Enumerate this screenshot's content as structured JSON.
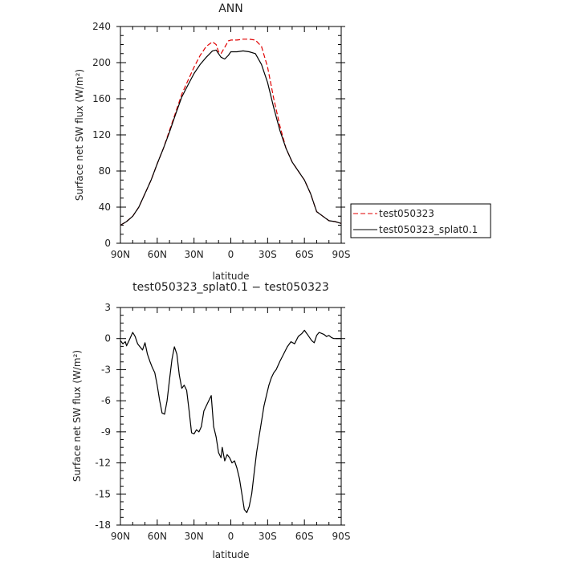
{
  "chart_data": [
    {
      "type": "line",
      "title": "ANN",
      "xlabel": "latitude",
      "ylabel": "Surface net SW flux (W/m²)",
      "xlim": [
        -90,
        90
      ],
      "ylim": [
        0,
        240
      ],
      "x_ticks": [
        -90,
        -60,
        -30,
        0,
        30,
        60,
        90
      ],
      "x_tick_labels": [
        "90N",
        "60N",
        "30N",
        "0",
        "30S",
        "60S",
        "90S"
      ],
      "y_ticks": [
        0,
        40,
        80,
        120,
        160,
        200,
        240
      ],
      "y_tick_labels": [
        "0",
        "40",
        "80",
        "120",
        "160",
        "200",
        "240"
      ],
      "legend": {
        "placement": "right"
      },
      "series": [
        {
          "name": "test050323",
          "color": "#e00000",
          "dash": true,
          "x": [
            -90,
            -85,
            -80,
            -75,
            -70,
            -65,
            -60,
            -55,
            -50,
            -45,
            -40,
            -35,
            -30,
            -25,
            -20,
            -15,
            -12,
            -10,
            -8,
            -5,
            -2,
            0,
            5,
            10,
            15,
            20,
            25,
            30,
            35,
            40,
            45,
            50,
            55,
            60,
            65,
            70,
            75,
            80,
            85,
            90
          ],
          "y": [
            20,
            24,
            30,
            40,
            55,
            70,
            88,
            105,
            125,
            145,
            165,
            180,
            195,
            208,
            218,
            223,
            220,
            212,
            210,
            217,
            224,
            225,
            225,
            226,
            226,
            225,
            218,
            195,
            160,
            130,
            105,
            90,
            80,
            70,
            55,
            35,
            30,
            25,
            24,
            22
          ]
        },
        {
          "name": "test050323_splat0.1",
          "color": "#000000",
          "dash": false,
          "x": [
            -90,
            -85,
            -80,
            -75,
            -70,
            -65,
            -60,
            -55,
            -50,
            -45,
            -40,
            -35,
            -30,
            -25,
            -20,
            -15,
            -12,
            -10,
            -8,
            -5,
            -2,
            0,
            5,
            10,
            15,
            20,
            25,
            30,
            35,
            40,
            45,
            50,
            55,
            60,
            65,
            70,
            75,
            80,
            85,
            90
          ],
          "y": [
            20,
            24,
            30,
            40,
            55,
            70,
            88,
            105,
            123,
            143,
            162,
            175,
            188,
            198,
            206,
            213,
            214,
            210,
            206,
            204,
            208,
            212,
            212,
            213,
            212,
            210,
            198,
            178,
            150,
            125,
            105,
            90,
            80,
            70,
            55,
            35,
            30,
            25,
            24,
            22
          ]
        }
      ]
    },
    {
      "type": "line",
      "title": "test050323_splat0.1 − test050323",
      "xlabel": "latitude",
      "ylabel": "Surface net SW flux (W/m²)",
      "xlim": [
        -90,
        90
      ],
      "ylim": [
        -18,
        3
      ],
      "x_ticks": [
        -90,
        -60,
        -30,
        0,
        30,
        60,
        90
      ],
      "x_tick_labels": [
        "90N",
        "60N",
        "30N",
        "0",
        "30S",
        "60S",
        "90S"
      ],
      "y_ticks": [
        -18,
        -15,
        -12,
        -9,
        -6,
        -3,
        0,
        3
      ],
      "y_tick_labels": [
        "-18",
        "-15",
        "-12",
        "-9",
        "-6",
        "-3",
        "0",
        "3"
      ],
      "series": [
        {
          "color": "#000000",
          "x": [
            -90,
            -88,
            -86,
            -85,
            -83,
            -80,
            -78,
            -76,
            -74,
            -72,
            -70,
            -68,
            -66,
            -64,
            -62,
            -60,
            -58,
            -56,
            -54,
            -52,
            -50,
            -48,
            -46,
            -44,
            -42,
            -40,
            -38,
            -36,
            -34,
            -32,
            -30,
            -28,
            -26,
            -24,
            -22,
            -20,
            -18,
            -16,
            -14,
            -12,
            -10,
            -8,
            -7,
            -5,
            -3,
            -1,
            1,
            3,
            5,
            7,
            9,
            11,
            13,
            15,
            17,
            19,
            21,
            23,
            25,
            27,
            29,
            31,
            33,
            35,
            37,
            40,
            43,
            46,
            49,
            52,
            55,
            58,
            60,
            63,
            66,
            68,
            70,
            72,
            74,
            76,
            78,
            80,
            82,
            84,
            86,
            88,
            90
          ],
          "y": [
            -0.2,
            -0.5,
            -0.3,
            -0.7,
            -0.2,
            0.6,
            0.2,
            -0.5,
            -0.8,
            -1.1,
            -0.4,
            -1.5,
            -2.2,
            -2.8,
            -3.3,
            -4.5,
            -6.0,
            -7.2,
            -7.3,
            -6.0,
            -4.0,
            -2.0,
            -0.8,
            -1.5,
            -3.5,
            -4.8,
            -4.5,
            -5.0,
            -7.0,
            -9.1,
            -9.2,
            -8.8,
            -9.0,
            -8.5,
            -7.0,
            -6.5,
            -6.0,
            -5.5,
            -8.5,
            -9.5,
            -11.0,
            -11.5,
            -10.5,
            -11.8,
            -11.2,
            -11.5,
            -12.0,
            -11.8,
            -12.5,
            -13.5,
            -15.0,
            -16.5,
            -16.8,
            -16.2,
            -15.0,
            -13.0,
            -11.0,
            -9.5,
            -8.0,
            -6.5,
            -5.5,
            -4.5,
            -3.8,
            -3.3,
            -3.0,
            -2.2,
            -1.5,
            -0.8,
            -0.3,
            -0.5,
            0.2,
            0.5,
            0.8,
            0.3,
            -0.2,
            -0.4,
            0.3,
            0.6,
            0.5,
            0.4,
            0.2,
            0.3,
            0.1,
            0.0,
            0.0,
            0.0,
            0.0
          ]
        }
      ]
    }
  ]
}
